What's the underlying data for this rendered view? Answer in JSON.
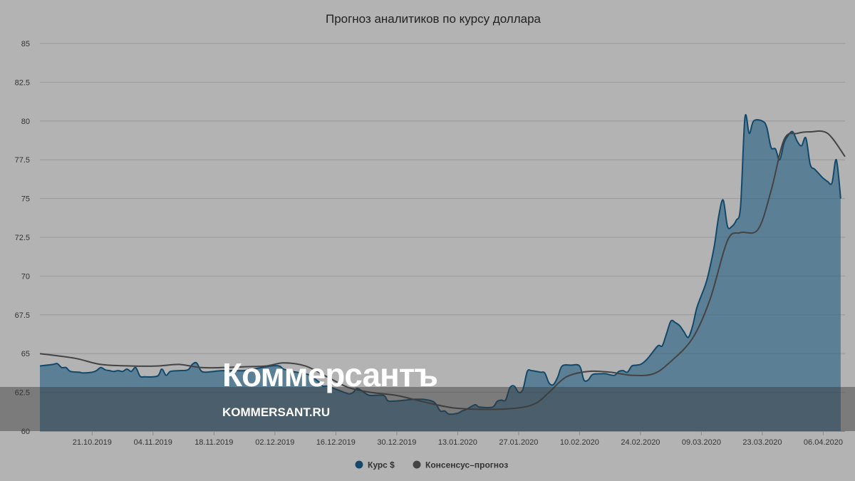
{
  "chart_data": {
    "type": "area",
    "title": "Прогноз аналитиков по курсу доллара",
    "ylim": [
      60,
      85
    ],
    "y_ticks": [
      "60",
      "62.5",
      "65",
      "67.5",
      "70",
      "72.5",
      "75",
      "77.5",
      "80",
      "82.5",
      "85"
    ],
    "x_ticks": [
      "21.10.2019",
      "04.11.2019",
      "18.11.2019",
      "02.12.2019",
      "16.12.2019",
      "30.12.2019",
      "13.01.2020",
      "27.01.2020",
      "10.02.2020",
      "24.02.2020",
      "09.03.2020",
      "23.03.2020",
      "06.04.2020"
    ],
    "xlim": [
      "2019-10-09",
      "2020-04-11"
    ],
    "grid": true,
    "legend_position": "bottom-center",
    "series": [
      {
        "name": "Курс $",
        "color": "#12496b",
        "points": [
          [
            "2019-10-09",
            64.2
          ],
          [
            "2019-10-12",
            64.3
          ],
          [
            "2019-10-13",
            64.35
          ],
          [
            "2019-10-14",
            64.1
          ],
          [
            "2019-10-15",
            64.1
          ],
          [
            "2019-10-16",
            63.85
          ],
          [
            "2019-10-18",
            63.8
          ],
          [
            "2019-10-19",
            63.75
          ],
          [
            "2019-10-21",
            63.8
          ],
          [
            "2019-10-22",
            63.9
          ],
          [
            "2019-10-23",
            64.1
          ],
          [
            "2019-10-24",
            63.95
          ],
          [
            "2019-10-25",
            63.9
          ],
          [
            "2019-10-26",
            63.85
          ],
          [
            "2019-10-27",
            63.9
          ],
          [
            "2019-10-28",
            63.85
          ],
          [
            "2019-10-29",
            64.0
          ],
          [
            "2019-10-30",
            63.85
          ],
          [
            "2019-10-31",
            64.1
          ],
          [
            "2019-11-01",
            63.55
          ],
          [
            "2019-11-02",
            63.5
          ],
          [
            "2019-11-05",
            63.55
          ],
          [
            "2019-11-06",
            64.0
          ],
          [
            "2019-11-07",
            63.6
          ],
          [
            "2019-11-08",
            63.85
          ],
          [
            "2019-11-10",
            63.9
          ],
          [
            "2019-11-12",
            63.95
          ],
          [
            "2019-11-13",
            64.3
          ],
          [
            "2019-11-14",
            64.4
          ],
          [
            "2019-11-15",
            63.9
          ],
          [
            "2019-11-16",
            63.8
          ],
          [
            "2019-11-18",
            63.85
          ],
          [
            "2019-11-20",
            63.9
          ],
          [
            "2019-11-25",
            63.9
          ],
          [
            "2019-11-26",
            64.0
          ],
          [
            "2019-11-27",
            64.0
          ],
          [
            "2019-11-29",
            64.1
          ],
          [
            "2019-12-01",
            64.2
          ],
          [
            "2019-12-03",
            64.2
          ],
          [
            "2019-12-04",
            64.0
          ],
          [
            "2019-12-06",
            63.85
          ],
          [
            "2019-12-07",
            63.8
          ],
          [
            "2019-12-09",
            63.7
          ],
          [
            "2019-12-10",
            63.6
          ],
          [
            "2019-12-12",
            63.2
          ],
          [
            "2019-12-13",
            62.9
          ],
          [
            "2019-12-14",
            62.9
          ],
          [
            "2019-12-16",
            62.7
          ],
          [
            "2019-12-17",
            62.6
          ],
          [
            "2019-12-19",
            62.4
          ],
          [
            "2019-12-20",
            62.5
          ],
          [
            "2019-12-21",
            62.75
          ],
          [
            "2019-12-23",
            62.4
          ],
          [
            "2019-12-24",
            62.3
          ],
          [
            "2019-12-27",
            62.3
          ],
          [
            "2019-12-28",
            61.95
          ],
          [
            "2019-12-30",
            61.95
          ],
          [
            "2020-01-01",
            62.0
          ],
          [
            "2020-01-03",
            62.05
          ],
          [
            "2020-01-05",
            62.05
          ],
          [
            "2020-01-07",
            61.95
          ],
          [
            "2020-01-08",
            61.75
          ],
          [
            "2020-01-09",
            61.3
          ],
          [
            "2020-01-10",
            61.3
          ],
          [
            "2020-01-11",
            61.1
          ],
          [
            "2020-01-13",
            61.15
          ],
          [
            "2020-01-14",
            61.3
          ],
          [
            "2020-01-15",
            61.4
          ],
          [
            "2020-01-17",
            61.7
          ],
          [
            "2020-01-18",
            61.55
          ],
          [
            "2020-01-21",
            61.55
          ],
          [
            "2020-01-22",
            61.9
          ],
          [
            "2020-01-23",
            62.0
          ],
          [
            "2020-01-24",
            62.0
          ],
          [
            "2020-01-25",
            62.8
          ],
          [
            "2020-01-26",
            62.9
          ],
          [
            "2020-01-27",
            62.5
          ],
          [
            "2020-01-28",
            62.7
          ],
          [
            "2020-01-29",
            63.85
          ],
          [
            "2020-01-30",
            63.9
          ],
          [
            "2020-02-01",
            63.8
          ],
          [
            "2020-02-02",
            63.75
          ],
          [
            "2020-02-03",
            63.1
          ],
          [
            "2020-02-04",
            63.0
          ],
          [
            "2020-02-05",
            63.5
          ],
          [
            "2020-02-06",
            64.2
          ],
          [
            "2020-02-08",
            64.25
          ],
          [
            "2020-02-10",
            64.2
          ],
          [
            "2020-02-11",
            63.3
          ],
          [
            "2020-02-12",
            63.3
          ],
          [
            "2020-02-13",
            63.65
          ],
          [
            "2020-02-15",
            63.7
          ],
          [
            "2020-02-16",
            63.7
          ],
          [
            "2020-02-18",
            63.6
          ],
          [
            "2020-02-19",
            63.85
          ],
          [
            "2020-02-20",
            63.9
          ],
          [
            "2020-02-21",
            63.8
          ],
          [
            "2020-02-22",
            64.2
          ],
          [
            "2020-02-23",
            64.25
          ],
          [
            "2020-02-24",
            64.3
          ],
          [
            "2020-02-25",
            64.5
          ],
          [
            "2020-02-26",
            64.8
          ],
          [
            "2020-02-28",
            65.5
          ],
          [
            "2020-02-29",
            65.5
          ],
          [
            "2020-03-01",
            66.3
          ],
          [
            "2020-03-02",
            67.1
          ],
          [
            "2020-03-03",
            67.0
          ],
          [
            "2020-03-04",
            66.8
          ],
          [
            "2020-03-05",
            66.4
          ],
          [
            "2020-03-06",
            66.05
          ],
          [
            "2020-03-07",
            66.8
          ],
          [
            "2020-03-08",
            68.0
          ],
          [
            "2020-03-10",
            69.5
          ],
          [
            "2020-03-11",
            70.6
          ],
          [
            "2020-03-12",
            72.0
          ],
          [
            "2020-03-13",
            73.9
          ],
          [
            "2020-03-14",
            74.9
          ],
          [
            "2020-03-15",
            73.2
          ],
          [
            "2020-03-16",
            73.2
          ],
          [
            "2020-03-17",
            73.6
          ],
          [
            "2020-03-18",
            74.5
          ],
          [
            "2020-03-19",
            80.2
          ],
          [
            "2020-03-20",
            79.2
          ],
          [
            "2020-03-21",
            80.0
          ],
          [
            "2020-03-23",
            80.0
          ],
          [
            "2020-03-24",
            79.6
          ],
          [
            "2020-03-25",
            78.3
          ],
          [
            "2020-03-26",
            78.2
          ],
          [
            "2020-03-27",
            77.5
          ],
          [
            "2020-03-28",
            78.6
          ],
          [
            "2020-03-29",
            79.1
          ],
          [
            "2020-03-30",
            79.3
          ],
          [
            "2020-03-31",
            78.7
          ],
          [
            "2020-04-01",
            78.4
          ],
          [
            "2020-04-02",
            78.9
          ],
          [
            "2020-04-03",
            77.2
          ],
          [
            "2020-04-04",
            76.9
          ],
          [
            "2020-04-05",
            76.6
          ],
          [
            "2020-04-06",
            76.3
          ],
          [
            "2020-04-07",
            76.1
          ],
          [
            "2020-04-08",
            76.0
          ],
          [
            "2020-04-09",
            77.5
          ],
          [
            "2020-04-10",
            75.0
          ]
        ]
      },
      {
        "name": "Консенсус–прогноз",
        "color": "#444444",
        "points": [
          [
            "2019-10-09",
            65.0
          ],
          [
            "2019-10-17",
            64.7
          ],
          [
            "2019-10-23",
            64.3
          ],
          [
            "2019-10-30",
            64.2
          ],
          [
            "2019-11-05",
            64.2
          ],
          [
            "2019-11-10",
            64.3
          ],
          [
            "2019-11-15",
            64.1
          ],
          [
            "2019-11-20",
            64.1
          ],
          [
            "2019-11-25",
            64.15
          ],
          [
            "2019-11-30",
            64.2
          ],
          [
            "2019-12-04",
            64.4
          ],
          [
            "2019-12-09",
            64.2
          ],
          [
            "2019-12-14",
            63.5
          ],
          [
            "2019-12-19",
            62.8
          ],
          [
            "2019-12-24",
            62.5
          ],
          [
            "2019-12-30",
            62.3
          ],
          [
            "2020-01-05",
            61.9
          ],
          [
            "2020-01-12",
            61.5
          ],
          [
            "2020-01-20",
            61.4
          ],
          [
            "2020-01-27",
            61.5
          ],
          [
            "2020-01-31",
            61.8
          ],
          [
            "2020-02-03",
            62.5
          ],
          [
            "2020-02-07",
            63.5
          ],
          [
            "2020-02-12",
            63.85
          ],
          [
            "2020-02-17",
            63.8
          ],
          [
            "2020-02-22",
            63.6
          ],
          [
            "2020-02-27",
            63.7
          ],
          [
            "2020-03-02",
            64.5
          ],
          [
            "2020-03-07",
            66.0
          ],
          [
            "2020-03-11",
            68.5
          ],
          [
            "2020-03-15",
            72.3
          ],
          [
            "2020-03-18",
            72.8
          ],
          [
            "2020-03-22",
            73.0
          ],
          [
            "2020-03-25",
            75.5
          ],
          [
            "2020-03-28",
            78.8
          ],
          [
            "2020-03-31",
            79.2
          ],
          [
            "2020-04-03",
            79.3
          ],
          [
            "2020-04-07",
            79.2
          ],
          [
            "2020-04-11",
            77.7
          ]
        ]
      }
    ]
  },
  "watermark": {
    "brand": "Коммерсантъ",
    "url": "KOMMERSANT.RU"
  }
}
